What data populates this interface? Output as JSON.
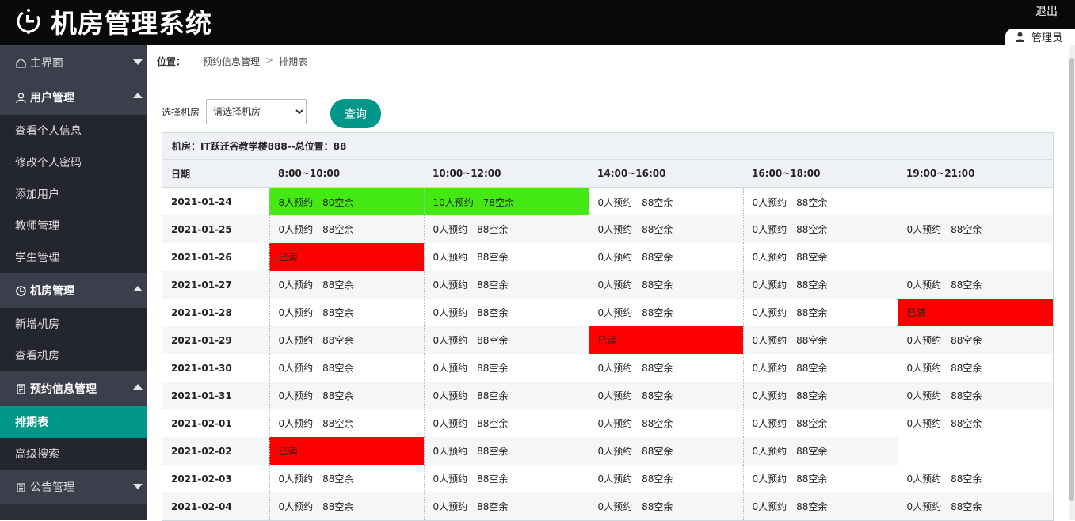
{
  "header": {
    "title": "机房管理系统",
    "logout": "退出",
    "user": "管理员"
  },
  "sidebar": {
    "groups": [
      {
        "label": "主界面"
      },
      {
        "label": "用户管理",
        "items": [
          "查看个人信息",
          "修改个人密码",
          "添加用户",
          "教师管理",
          "学生管理"
        ]
      },
      {
        "label": "机房管理",
        "items": [
          "新增机房",
          "查看机房"
        ]
      },
      {
        "label": "预约信息管理",
        "items": [
          "排期表",
          "高级搜索"
        ]
      },
      {
        "label": "公告管理"
      }
    ],
    "active_item": "排期表"
  },
  "breadcrumb": {
    "label": "位置：",
    "parent": "预约信息管理",
    "current": "排期表"
  },
  "filter": {
    "label": "选择机房",
    "select_value": "请选择机房",
    "query_button": "查询"
  },
  "schedule": {
    "caption": "机房：IT跃迁谷教学楼888--总位置：88",
    "headers": [
      "日期",
      "8:00~10:00",
      "10:00~12:00",
      "14:00~16:00",
      "16:00~18:00",
      "19:00~21:00"
    ],
    "colors": {
      "partial": "#44e914",
      "full": "#ff0000"
    },
    "rows": [
      {
        "date": "2021-01-24",
        "cells": [
          {
            "booked": "8人预约",
            "left": "80空余",
            "status": "partial"
          },
          {
            "booked": "10人预约",
            "left": "78空余",
            "status": "partial"
          },
          {
            "booked": "0人预约",
            "left": "88空余",
            "status": "normal"
          },
          {
            "booked": "0人预约",
            "left": "88空余",
            "status": "normal"
          },
          {
            "booked": "",
            "left": "",
            "status": "empty"
          }
        ]
      },
      {
        "date": "2021-01-25",
        "cells": [
          {
            "booked": "0人预约",
            "left": "88空余",
            "status": "normal"
          },
          {
            "booked": "0人预约",
            "left": "88空余",
            "status": "normal"
          },
          {
            "booked": "0人预约",
            "left": "88空余",
            "status": "normal"
          },
          {
            "booked": "0人预约",
            "left": "88空余",
            "status": "normal"
          },
          {
            "booked": "0人预约",
            "left": "88空余",
            "status": "normal"
          }
        ]
      },
      {
        "date": "2021-01-26",
        "cells": [
          {
            "booked": "已满",
            "left": "",
            "status": "full"
          },
          {
            "booked": "0人预约",
            "left": "88空余",
            "status": "normal"
          },
          {
            "booked": "0人预约",
            "left": "88空余",
            "status": "normal"
          },
          {
            "booked": "0人预约",
            "left": "88空余",
            "status": "normal"
          },
          {
            "booked": "",
            "left": "",
            "status": "empty"
          }
        ]
      },
      {
        "date": "2021-01-27",
        "cells": [
          {
            "booked": "0人预约",
            "left": "88空余",
            "status": "normal"
          },
          {
            "booked": "0人预约",
            "left": "88空余",
            "status": "normal"
          },
          {
            "booked": "0人预约",
            "left": "88空余",
            "status": "normal"
          },
          {
            "booked": "0人预约",
            "left": "88空余",
            "status": "normal"
          },
          {
            "booked": "0人预约",
            "left": "88空余",
            "status": "normal"
          }
        ]
      },
      {
        "date": "2021-01-28",
        "cells": [
          {
            "booked": "0人预约",
            "left": "88空余",
            "status": "normal"
          },
          {
            "booked": "0人预约",
            "left": "88空余",
            "status": "normal"
          },
          {
            "booked": "0人预约",
            "left": "88空余",
            "status": "normal"
          },
          {
            "booked": "0人预约",
            "left": "88空余",
            "status": "normal"
          },
          {
            "booked": "已满",
            "left": "",
            "status": "full"
          }
        ]
      },
      {
        "date": "2021-01-29",
        "cells": [
          {
            "booked": "0人预约",
            "left": "88空余",
            "status": "normal"
          },
          {
            "booked": "0人预约",
            "left": "88空余",
            "status": "normal"
          },
          {
            "booked": "已满",
            "left": "",
            "status": "full"
          },
          {
            "booked": "0人预约",
            "left": "88空余",
            "status": "normal"
          },
          {
            "booked": "0人预约",
            "left": "88空余",
            "status": "normal"
          }
        ]
      },
      {
        "date": "2021-01-30",
        "cells": [
          {
            "booked": "0人预约",
            "left": "88空余",
            "status": "normal"
          },
          {
            "booked": "0人预约",
            "left": "88空余",
            "status": "normal"
          },
          {
            "booked": "0人预约",
            "left": "88空余",
            "status": "normal"
          },
          {
            "booked": "0人预约",
            "left": "88空余",
            "status": "normal"
          },
          {
            "booked": "0人预约",
            "left": "88空余",
            "status": "normal"
          }
        ]
      },
      {
        "date": "2021-01-31",
        "cells": [
          {
            "booked": "0人预约",
            "left": "88空余",
            "status": "normal"
          },
          {
            "booked": "0人预约",
            "left": "88空余",
            "status": "normal"
          },
          {
            "booked": "0人预约",
            "left": "88空余",
            "status": "normal"
          },
          {
            "booked": "0人预约",
            "left": "88空余",
            "status": "normal"
          },
          {
            "booked": "0人预约",
            "left": "88空余",
            "status": "normal"
          }
        ]
      },
      {
        "date": "2021-02-01",
        "cells": [
          {
            "booked": "0人预约",
            "left": "88空余",
            "status": "normal"
          },
          {
            "booked": "0人预约",
            "left": "88空余",
            "status": "normal"
          },
          {
            "booked": "0人预约",
            "left": "88空余",
            "status": "normal"
          },
          {
            "booked": "0人预约",
            "left": "88空余",
            "status": "normal"
          },
          {
            "booked": "0人预约",
            "left": "88空余",
            "status": "normal"
          }
        ]
      },
      {
        "date": "2021-02-02",
        "cells": [
          {
            "booked": "已满",
            "left": "",
            "status": "full"
          },
          {
            "booked": "0人预约",
            "left": "88空余",
            "status": "normal"
          },
          {
            "booked": "0人预约",
            "left": "88空余",
            "status": "normal"
          },
          {
            "booked": "0人预约",
            "left": "88空余",
            "status": "normal"
          },
          {
            "booked": "",
            "left": "",
            "status": "empty"
          }
        ]
      },
      {
        "date": "2021-02-03",
        "cells": [
          {
            "booked": "0人预约",
            "left": "88空余",
            "status": "normal"
          },
          {
            "booked": "0人预约",
            "left": "88空余",
            "status": "normal"
          },
          {
            "booked": "0人预约",
            "left": "88空余",
            "status": "normal"
          },
          {
            "booked": "0人预约",
            "left": "88空余",
            "status": "normal"
          },
          {
            "booked": "0人预约",
            "left": "88空余",
            "status": "normal"
          }
        ]
      },
      {
        "date": "2021-02-04",
        "cells": [
          {
            "booked": "0人预约",
            "left": "88空余",
            "status": "normal"
          },
          {
            "booked": "0人预约",
            "left": "88空余",
            "status": "normal"
          },
          {
            "booked": "0人预约",
            "left": "88空余",
            "status": "normal"
          },
          {
            "booked": "0人预约",
            "left": "88空余",
            "status": "normal"
          },
          {
            "booked": "0人预约",
            "left": "88空余",
            "status": "normal"
          }
        ]
      }
    ]
  }
}
